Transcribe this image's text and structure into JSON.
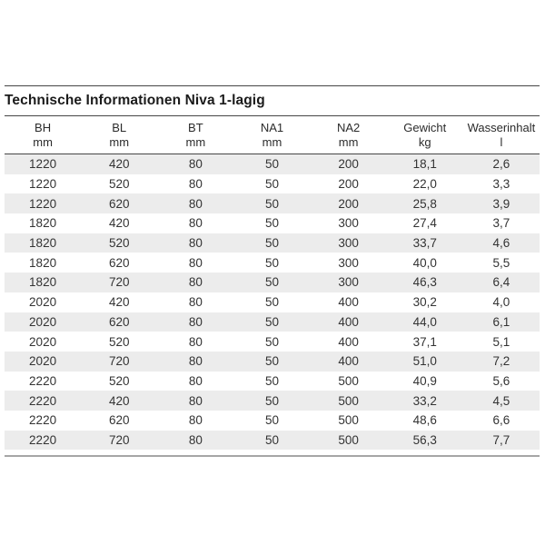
{
  "chart_data": {
    "type": "table",
    "title": "Technische Informationen Niva 1-lagig",
    "columns": [
      {
        "label": "BH",
        "unit": "mm"
      },
      {
        "label": "BL",
        "unit": "mm"
      },
      {
        "label": "BT",
        "unit": "mm"
      },
      {
        "label": "NA1",
        "unit": "mm"
      },
      {
        "label": "NA2",
        "unit": "mm"
      },
      {
        "label": "Gewicht",
        "unit": "kg"
      },
      {
        "label": "Wasserinhalt",
        "unit": "l"
      }
    ],
    "rows": [
      [
        "1220",
        "420",
        "80",
        "50",
        "200",
        "18,1",
        "2,6"
      ],
      [
        "1220",
        "520",
        "80",
        "50",
        "200",
        "22,0",
        "3,3"
      ],
      [
        "1220",
        "620",
        "80",
        "50",
        "200",
        "25,8",
        "3,9"
      ],
      [
        "1820",
        "420",
        "80",
        "50",
        "300",
        "27,4",
        "3,7"
      ],
      [
        "1820",
        "520",
        "80",
        "50",
        "300",
        "33,7",
        "4,6"
      ],
      [
        "1820",
        "620",
        "80",
        "50",
        "300",
        "40,0",
        "5,5"
      ],
      [
        "1820",
        "720",
        "80",
        "50",
        "300",
        "46,3",
        "6,4"
      ],
      [
        "2020",
        "420",
        "80",
        "50",
        "400",
        "30,2",
        "4,0"
      ],
      [
        "2020",
        "620",
        "80",
        "50",
        "400",
        "44,0",
        "6,1"
      ],
      [
        "2020",
        "520",
        "80",
        "50",
        "400",
        "37,1",
        "5,1"
      ],
      [
        "2020",
        "720",
        "80",
        "50",
        "400",
        "51,0",
        "7,2"
      ],
      [
        "2220",
        "520",
        "80",
        "50",
        "500",
        "40,9",
        "5,6"
      ],
      [
        "2220",
        "420",
        "80",
        "50",
        "500",
        "33,2",
        "4,5"
      ],
      [
        "2220",
        "620",
        "80",
        "50",
        "500",
        "48,6",
        "6,6"
      ],
      [
        "2220",
        "720",
        "80",
        "50",
        "500",
        "56,3",
        "7,7"
      ]
    ],
    "layout": {
      "striped": true,
      "first_row_striped": true,
      "legend_position": "none",
      "grid": "horizontal-stripes"
    }
  },
  "colors": {
    "background": "#ffffff",
    "stripe": "#ececec",
    "rule_dark": "#464646",
    "rule_light": "#a6a6a6",
    "title_text": "#1b1b1b",
    "header_text": "#2b2b2b",
    "cell_text": "#333333"
  }
}
